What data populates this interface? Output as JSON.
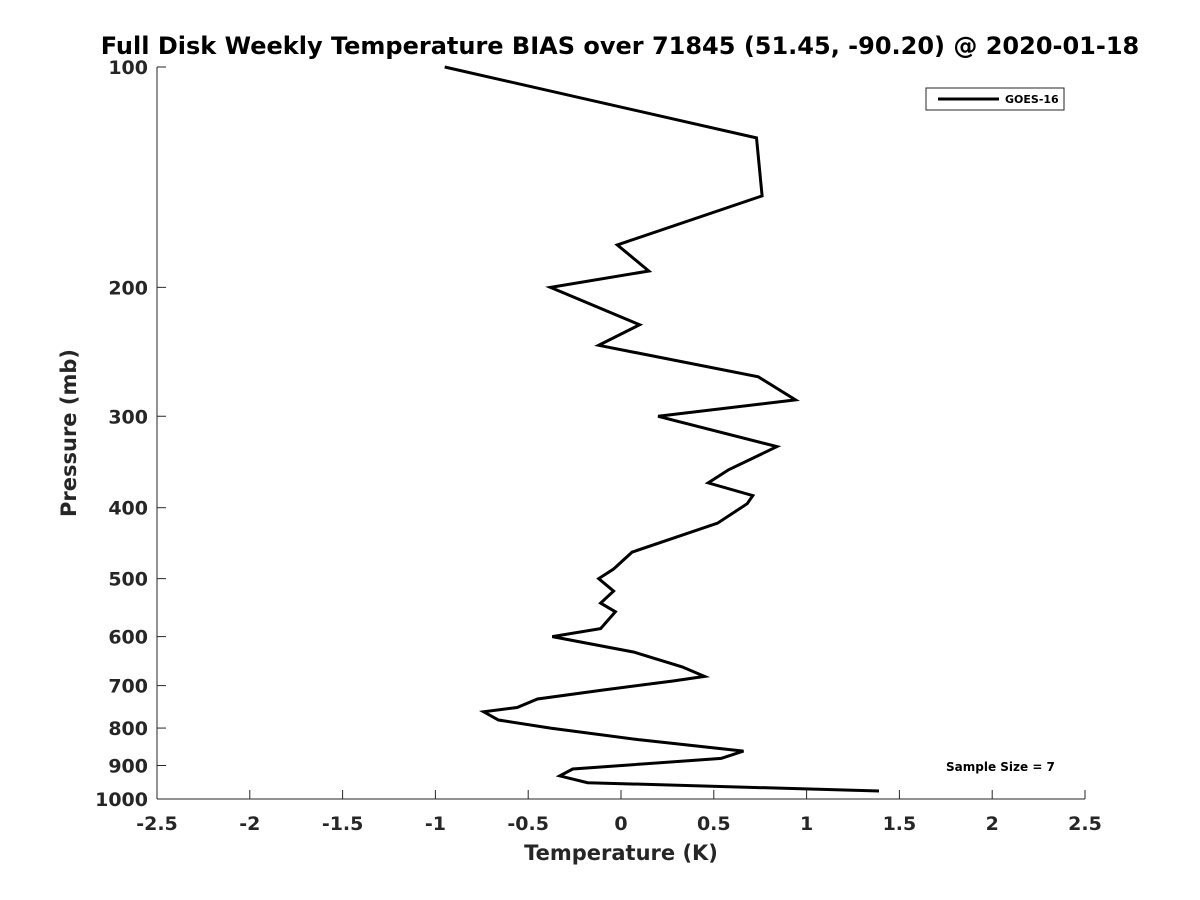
{
  "chart_data": {
    "type": "line",
    "title": "Full Disk Weekly Temperature BIAS over 71845 (51.45, -90.20) @ 2020-01-18",
    "xlabel": "Temperature (K)",
    "ylabel": "Pressure (mb)",
    "xlim": [
      -2.5,
      2.5
    ],
    "ylim": [
      100,
      1000
    ],
    "y_scale": "log",
    "y_reversed": true,
    "grid": false,
    "legend_position": "top-right",
    "x_ticks": [
      -2.5,
      -2,
      -1.5,
      -1,
      -0.5,
      0,
      0.5,
      1,
      1.5,
      2,
      2.5
    ],
    "x_tick_labels": [
      "-2.5",
      "-2",
      "-1.5",
      "-1",
      "-0.5",
      "0",
      "0.5",
      "1",
      "1.5",
      "2",
      "2.5"
    ],
    "y_ticks": [
      100,
      200,
      300,
      400,
      500,
      600,
      700,
      800,
      900,
      1000
    ],
    "y_tick_labels": [
      "100",
      "200",
      "300",
      "400",
      "500",
      "600",
      "700",
      "800",
      "900",
      "1000"
    ],
    "series": [
      {
        "name": "GOES-16",
        "color": "#000000",
        "x": [
          -0.95,
          0.73,
          0.76,
          -0.02,
          0.15,
          -0.38,
          0.1,
          -0.12,
          0.74,
          0.94,
          0.2,
          0.84,
          0.58,
          0.47,
          0.71,
          0.68,
          0.52,
          0.06,
          -0.04,
          -0.12,
          -0.04,
          -0.11,
          -0.03,
          -0.11,
          -0.37,
          0.07,
          0.33,
          0.45,
          0.28,
          -0.1,
          -0.45,
          -0.56,
          -0.74,
          -0.66,
          -0.38,
          0.1,
          0.66,
          0.54,
          -0.26,
          -0.33,
          -0.18,
          1.39
        ],
        "y": [
          100,
          125,
          150,
          175,
          190,
          200,
          225,
          240,
          265,
          285,
          300,
          330,
          355,
          370,
          385,
          395,
          420,
          460,
          485,
          500,
          520,
          540,
          555,
          585,
          600,
          630,
          660,
          680,
          690,
          710,
          730,
          750,
          760,
          780,
          800,
          830,
          860,
          880,
          910,
          930,
          950,
          975
        ]
      }
    ],
    "annotation": "Sample Size = 7"
  }
}
